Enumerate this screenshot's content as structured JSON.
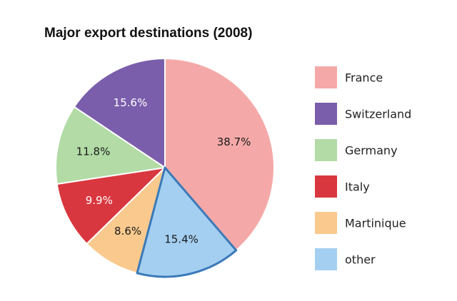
{
  "chart_data": {
    "type": "pie",
    "title": "Major export destinations (2008)",
    "start": "12 o'clock",
    "direction": "clockwise",
    "highlighted": "other",
    "slices": [
      {
        "label": "France",
        "value": 38.7,
        "display": "38.7%",
        "color": "#f4a9a8",
        "label_color": "#1a1a1a"
      },
      {
        "label": "other",
        "value": 15.4,
        "display": "15.4%",
        "color": "#a4cff1",
        "label_color": "#1a1a1a"
      },
      {
        "label": "Martinique",
        "value": 8.6,
        "display": "8.6%",
        "color": "#f9c98e",
        "label_color": "#1a1a1a"
      },
      {
        "label": "Italy",
        "value": 9.9,
        "display": "9.9%",
        "color": "#d9373f",
        "label_color": "#ffffff"
      },
      {
        "label": "Germany",
        "value": 11.8,
        "display": "11.8%",
        "color": "#b2dba5",
        "label_color": "#1a1a1a"
      },
      {
        "label": "Switzerland",
        "value": 15.6,
        "display": "15.6%",
        "color": "#7b5eab",
        "label_color": "#ffffff"
      }
    ],
    "legend": {
      "placement": "right",
      "entries": [
        {
          "label": "France",
          "color": "#f4a9a8"
        },
        {
          "label": "Switzerland",
          "color": "#7b5eab"
        },
        {
          "label": "Germany",
          "color": "#b2dba5"
        },
        {
          "label": "Italy",
          "color": "#d9373f"
        },
        {
          "label": "Martinique",
          "color": "#f9c98e"
        },
        {
          "label": "other",
          "color": "#a4cff1"
        }
      ]
    },
    "highlight_color": "#3a7ab8"
  }
}
